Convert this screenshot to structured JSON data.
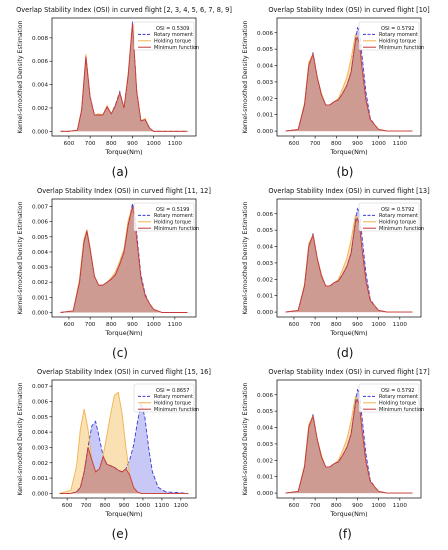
{
  "figure": {
    "title": "",
    "panel_labels": [
      "(a)",
      "(b)",
      "(c)",
      "(d)",
      "(e)",
      "(f)"
    ]
  },
  "colors": {
    "rotary": "#3a3ad8",
    "rotary_fill": "#9b9bf0",
    "holding": "#f2b24c",
    "holding_fill": "#f7d79a",
    "minimum": "#c8373a",
    "minimum_fill": "#c9918e",
    "axis": "#000000"
  },
  "chart_data": [
    {
      "type": "area",
      "panel": "(a)",
      "title": "Overlap Stability Index (OSI) in curved flight [2, 3, 4, 5, 6, 7, 8, 9]",
      "xlabel": "Torque(Nm)",
      "ylabel": "Kernel-smoothed Density Estimation",
      "xlim": [
        520,
        1200
      ],
      "ylim": [
        -0.0004,
        0.0097
      ],
      "xticks": [
        "600",
        "700",
        "800",
        "900",
        "1000",
        "1100"
      ],
      "yticks": [
        "0.000",
        "0.002",
        "0.004",
        "0.006",
        "0.008"
      ],
      "legend": {
        "position": "top-right",
        "entries": [
          "OSI = 0.5309",
          "Rotary moment",
          "Holding torque",
          "Minimum function"
        ]
      },
      "x": [
        560,
        600,
        640,
        660,
        680,
        700,
        720,
        740,
        760,
        780,
        800,
        820,
        840,
        860,
        880,
        900,
        920,
        940,
        960,
        980,
        1000,
        1040,
        1080,
        1160
      ],
      "series": [
        {
          "name": "Rotary moment",
          "values": [
            0,
            0,
            0.0001,
            0.0018,
            0.0064,
            0.003,
            0.0014,
            0.0014,
            0.0014,
            0.0021,
            0.0015,
            0.0023,
            0.0034,
            0.002,
            0.0048,
            0.0094,
            0.0035,
            0.0009,
            0.001,
            0.0003,
            0,
            0,
            0,
            0
          ]
        },
        {
          "name": "Holding torque",
          "values": [
            0,
            0,
            0.0001,
            0.0019,
            0.0066,
            0.0029,
            0.0014,
            0.0015,
            0.0014,
            0.0022,
            0.0015,
            0.0022,
            0.0033,
            0.002,
            0.005,
            0.0092,
            0.0034,
            0.0009,
            0.0011,
            0.0003,
            0,
            0,
            0,
            0
          ]
        },
        {
          "name": "Minimum function",
          "values": [
            0,
            0,
            0.0001,
            0.0018,
            0.0064,
            0.0029,
            0.0014,
            0.0014,
            0.0014,
            0.0021,
            0.0015,
            0.0022,
            0.0033,
            0.002,
            0.0048,
            0.0092,
            0.0034,
            0.0009,
            0.001,
            0.0003,
            0,
            0,
            0,
            0
          ]
        }
      ]
    },
    {
      "type": "area",
      "panel": "(b)",
      "title": "Overlap Stability Index (OSI) in curved flight [10]",
      "xlabel": "Torque(Nm)",
      "ylabel": "Kernel-smoothed Density Estimation",
      "xlim": [
        520,
        1200
      ],
      "ylim": [
        -0.0003,
        0.0069
      ],
      "xticks": [
        "600",
        "700",
        "800",
        "900",
        "1000",
        "1100"
      ],
      "yticks": [
        "0.000",
        "0.001",
        "0.002",
        "0.003",
        "0.004",
        "0.005",
        "0.006"
      ],
      "legend": {
        "position": "top-right",
        "entries": [
          "OSI = 0.5792",
          "Rotary moment",
          "Holding torque",
          "Minimum function"
        ]
      },
      "x": [
        560,
        620,
        650,
        670,
        690,
        710,
        730,
        750,
        770,
        790,
        810,
        830,
        850,
        870,
        890,
        900,
        910,
        920,
        940,
        960,
        980,
        1000,
        1040,
        1160
      ],
      "series": [
        {
          "name": "Rotary moment",
          "values": [
            0,
            0.0001,
            0.0016,
            0.004,
            0.0048,
            0.0033,
            0.0022,
            0.0016,
            0.0016,
            0.0018,
            0.0019,
            0.0023,
            0.0028,
            0.0036,
            0.0055,
            0.0063,
            0.0061,
            0.0048,
            0.0024,
            0.0008,
            0.0004,
            0.0001,
            0,
            0
          ]
        },
        {
          "name": "Holding torque",
          "values": [
            0,
            0.0001,
            0.0017,
            0.0042,
            0.0047,
            0.0033,
            0.0023,
            0.0016,
            0.0016,
            0.0018,
            0.002,
            0.0026,
            0.0033,
            0.0044,
            0.0059,
            0.0057,
            0.0053,
            0.004,
            0.0019,
            0.0007,
            0.0004,
            0.0001,
            0,
            0
          ]
        },
        {
          "name": "Minimum function",
          "values": [
            0,
            0.0001,
            0.0016,
            0.004,
            0.0047,
            0.0033,
            0.0022,
            0.0016,
            0.0016,
            0.0018,
            0.0019,
            0.0023,
            0.0028,
            0.0036,
            0.0055,
            0.0057,
            0.0053,
            0.004,
            0.0019,
            0.0007,
            0.0004,
            0.0001,
            0,
            0
          ]
        }
      ]
    },
    {
      "type": "area",
      "panel": "(c)",
      "title": "Overlap Stability Index (OSI) in curved flight [11, 12]",
      "xlabel": "Torque(Nm)",
      "ylabel": "Kernel-smoothed Density Estimation",
      "xlim": [
        520,
        1200
      ],
      "ylim": [
        -0.0003,
        0.0075
      ],
      "xticks": [
        "600",
        "700",
        "800",
        "900",
        "1000",
        "1100"
      ],
      "yticks": [
        "0.000",
        "0.001",
        "0.002",
        "0.003",
        "0.004",
        "0.005",
        "0.006",
        "0.007"
      ],
      "legend": {
        "position": "top-right",
        "entries": [
          "OSI = 0.5199",
          "Rotary moment",
          "Holding torque",
          "Minimum function"
        ]
      },
      "x": [
        560,
        620,
        650,
        670,
        685,
        700,
        720,
        740,
        760,
        780,
        800,
        820,
        840,
        860,
        880,
        900,
        910,
        925,
        940,
        960,
        980,
        1000,
        1040,
        1160
      ],
      "series": [
        {
          "name": "Rotary moment",
          "values": [
            0,
            0.0001,
            0.002,
            0.0046,
            0.0054,
            0.0042,
            0.0024,
            0.0018,
            0.0018,
            0.002,
            0.0022,
            0.0025,
            0.0032,
            0.004,
            0.0058,
            0.0072,
            0.0066,
            0.0045,
            0.0025,
            0.0012,
            0.0006,
            0.0002,
            0,
            0
          ]
        },
        {
          "name": "Holding torque",
          "values": [
            0,
            0.0001,
            0.0022,
            0.0048,
            0.0055,
            0.0043,
            0.0024,
            0.0018,
            0.0018,
            0.002,
            0.0023,
            0.0027,
            0.0034,
            0.0042,
            0.0061,
            0.007,
            0.0062,
            0.0042,
            0.0023,
            0.0011,
            0.0006,
            0.0002,
            0,
            0
          ]
        },
        {
          "name": "Minimum function",
          "values": [
            0,
            0.0001,
            0.002,
            0.0046,
            0.0054,
            0.0042,
            0.0024,
            0.0018,
            0.0018,
            0.002,
            0.0022,
            0.0025,
            0.0032,
            0.004,
            0.0058,
            0.007,
            0.0062,
            0.0042,
            0.0023,
            0.0011,
            0.0006,
            0.0002,
            0,
            0
          ]
        }
      ]
    },
    {
      "type": "area",
      "panel": "(d)",
      "title": "Overlap Stability Index (OSI) in curved flight [13]",
      "xlabel": "Torque(Nm)",
      "ylabel": "Kernel-smoothed Density Estimation",
      "xlim": [
        520,
        1200
      ],
      "ylim": [
        -0.0003,
        0.0069
      ],
      "xticks": [
        "600",
        "700",
        "800",
        "900",
        "1000",
        "1100"
      ],
      "yticks": [
        "0.000",
        "0.001",
        "0.002",
        "0.003",
        "0.004",
        "0.005",
        "0.006"
      ],
      "legend": {
        "position": "top-right",
        "entries": [
          "OSI = 0.5792",
          "Rotary moment",
          "Holding torque",
          "Minimum function"
        ]
      },
      "x": [
        560,
        620,
        650,
        670,
        690,
        710,
        730,
        750,
        770,
        790,
        810,
        830,
        850,
        870,
        890,
        900,
        910,
        920,
        940,
        960,
        980,
        1000,
        1040,
        1160
      ],
      "series": [
        {
          "name": "Rotary moment",
          "values": [
            0,
            0.0001,
            0.0016,
            0.004,
            0.0048,
            0.0033,
            0.0022,
            0.0016,
            0.0016,
            0.0018,
            0.0019,
            0.0023,
            0.0028,
            0.0036,
            0.0055,
            0.0063,
            0.0061,
            0.0048,
            0.0024,
            0.0008,
            0.0004,
            0.0001,
            0,
            0
          ]
        },
        {
          "name": "Holding torque",
          "values": [
            0,
            0.0001,
            0.0017,
            0.0042,
            0.0047,
            0.0033,
            0.0023,
            0.0016,
            0.0016,
            0.0018,
            0.002,
            0.0026,
            0.0033,
            0.0044,
            0.0059,
            0.0057,
            0.0053,
            0.004,
            0.0019,
            0.0007,
            0.0004,
            0.0001,
            0,
            0
          ]
        },
        {
          "name": "Minimum function",
          "values": [
            0,
            0.0001,
            0.0016,
            0.004,
            0.0047,
            0.0033,
            0.0022,
            0.0016,
            0.0016,
            0.0018,
            0.0019,
            0.0023,
            0.0028,
            0.0036,
            0.0055,
            0.0057,
            0.0053,
            0.004,
            0.0019,
            0.0007,
            0.0004,
            0.0001,
            0,
            0
          ]
        }
      ]
    },
    {
      "type": "area",
      "panel": "(e)",
      "title": "Overlap Stability Index (OSI) in curved flight [15, 16]",
      "xlabel": "Torque(Nm)",
      "ylabel": "Kernel-smoothed Density Estimation",
      "xlim": [
        520,
        1280
      ],
      "ylim": [
        -0.0003,
        0.0074
      ],
      "xticks": [
        "600",
        "700",
        "800",
        "900",
        "1000",
        "1100",
        "1200"
      ],
      "yticks": [
        "0.000",
        "0.001",
        "0.002",
        "0.003",
        "0.004",
        "0.005",
        "0.006",
        "0.007"
      ],
      "legend": {
        "position": "top-right",
        "entries": [
          "OSI = 0.8657",
          "Rotary moment",
          "Holding torque",
          "Minimum function"
        ]
      },
      "x": [
        560,
        620,
        650,
        670,
        690,
        710,
        730,
        750,
        770,
        790,
        810,
        830,
        850,
        870,
        890,
        910,
        930,
        950,
        970,
        990,
        1010,
        1030,
        1050,
        1080,
        1120,
        1240
      ],
      "series": [
        {
          "name": "Rotary moment",
          "values": [
            0,
            0,
            0.0001,
            0.0004,
            0.0014,
            0.003,
            0.0044,
            0.0047,
            0.0036,
            0.0024,
            0.0019,
            0.0018,
            0.0017,
            0.0015,
            0.0014,
            0.0016,
            0.0022,
            0.0031,
            0.0046,
            0.0059,
            0.005,
            0.003,
            0.0014,
            0.0004,
            0.0001,
            0
          ]
        },
        {
          "name": "Holding torque",
          "values": [
            0,
            0.0002,
            0.0018,
            0.0042,
            0.0055,
            0.0042,
            0.0022,
            0.0014,
            0.0016,
            0.0025,
            0.0038,
            0.0052,
            0.0064,
            0.0066,
            0.0052,
            0.003,
            0.0012,
            0.0004,
            0.0001,
            0,
            0,
            0,
            0,
            0,
            0,
            0
          ]
        },
        {
          "name": "Minimum function",
          "values": [
            0,
            0,
            0.0001,
            0.0004,
            0.0014,
            0.003,
            0.0022,
            0.0014,
            0.0016,
            0.0024,
            0.0019,
            0.0018,
            0.0017,
            0.0015,
            0.0014,
            0.0016,
            0.0012,
            0.0004,
            0.0001,
            0,
            0,
            0,
            0,
            0,
            0,
            0
          ]
        }
      ]
    },
    {
      "type": "area",
      "panel": "(f)",
      "title": "Overlap Stability Index (OSI) in curved flight [17]",
      "xlabel": "Torque(Nm)",
      "ylabel": "Kernel-smoothed Density Estimation",
      "xlim": [
        520,
        1200
      ],
      "ylim": [
        -0.0003,
        0.0069
      ],
      "xticks": [
        "600",
        "700",
        "800",
        "900",
        "1000",
        "1100"
      ],
      "yticks": [
        "0.000",
        "0.001",
        "0.002",
        "0.003",
        "0.004",
        "0.005",
        "0.006"
      ],
      "legend": {
        "position": "top-right",
        "entries": [
          "OSI = 0.5792",
          "Rotary moment",
          "Holding torque",
          "Minimum function"
        ]
      },
      "x": [
        560,
        620,
        650,
        670,
        690,
        710,
        730,
        750,
        770,
        790,
        810,
        830,
        850,
        870,
        890,
        900,
        910,
        920,
        940,
        960,
        980,
        1000,
        1040,
        1160
      ],
      "series": [
        {
          "name": "Rotary moment",
          "values": [
            0,
            0.0001,
            0.0016,
            0.004,
            0.0048,
            0.0033,
            0.0022,
            0.0016,
            0.0016,
            0.0018,
            0.0019,
            0.0023,
            0.0028,
            0.0036,
            0.0055,
            0.0063,
            0.0061,
            0.0048,
            0.0024,
            0.0008,
            0.0004,
            0.0001,
            0,
            0
          ]
        },
        {
          "name": "Holding torque",
          "values": [
            0,
            0.0001,
            0.0017,
            0.0042,
            0.0047,
            0.0033,
            0.0023,
            0.0016,
            0.0016,
            0.0018,
            0.002,
            0.0026,
            0.0033,
            0.0044,
            0.0059,
            0.0057,
            0.0053,
            0.004,
            0.0019,
            0.0007,
            0.0004,
            0.0001,
            0,
            0
          ]
        },
        {
          "name": "Minimum function",
          "values": [
            0,
            0.0001,
            0.0016,
            0.004,
            0.0047,
            0.0033,
            0.0022,
            0.0016,
            0.0016,
            0.0018,
            0.0019,
            0.0023,
            0.0028,
            0.0036,
            0.0055,
            0.0057,
            0.0053,
            0.004,
            0.0019,
            0.0007,
            0.0004,
            0.0001,
            0,
            0
          ]
        }
      ]
    }
  ]
}
